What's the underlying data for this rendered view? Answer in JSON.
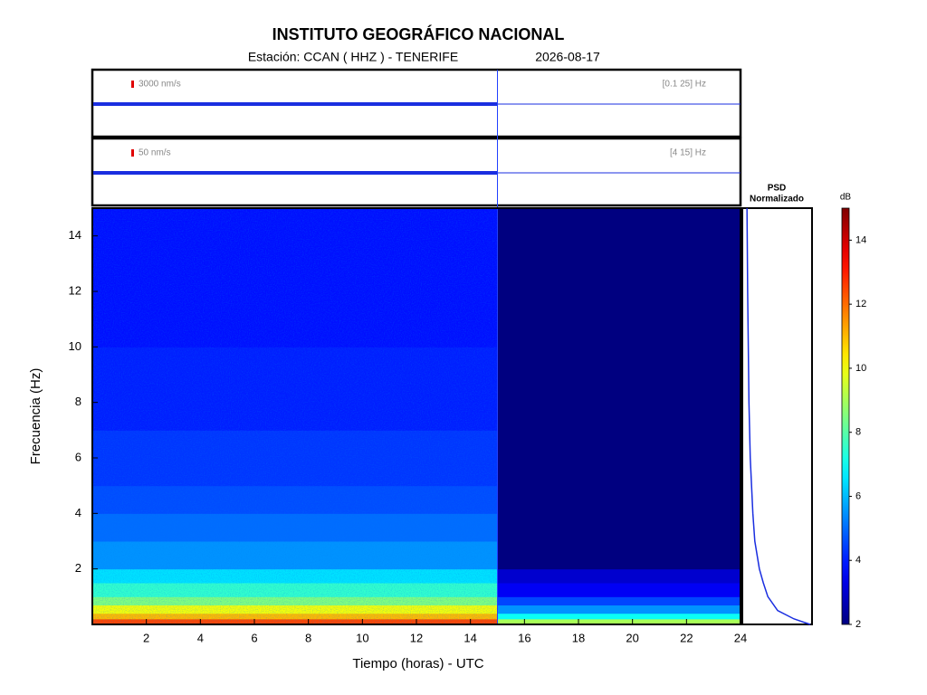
{
  "chart_data": {
    "type": "spectrogram",
    "title": "INSTITUTO GEOGRÁFICO NACIONAL",
    "station": "Estación:  CCAN ( HHZ ) - TENERIFE",
    "date": "2026-08-17",
    "xlabel": "Tiempo (horas) - UTC",
    "ylabel": "Frecuencia  (Hz)",
    "xlim": [
      0,
      24
    ],
    "xticks": [
      2,
      4,
      6,
      8,
      10,
      12,
      14,
      16,
      18,
      20,
      22,
      24
    ],
    "ylim": [
      0,
      15
    ],
    "yticks": [
      2,
      4,
      6,
      8,
      10,
      12,
      14
    ],
    "traces": [
      {
        "scale_label": "3000 nm/s",
        "band_label": "[0.1 25] Hz"
      },
      {
        "scale_label": "50 nm/s",
        "band_label": "[4 15] Hz"
      }
    ],
    "data_end": 15,
    "spectrogram": {
      "freq_edges": [
        0,
        0.2,
        0.4,
        0.7,
        1,
        1.5,
        2,
        3,
        4,
        5,
        7,
        10,
        15
      ],
      "db": [
        12.5,
        11,
        10,
        8.5,
        7.5,
        6.5,
        5.5,
        5,
        4.6,
        4.3,
        4,
        3.8
      ],
      "empty_db": [
        9,
        7,
        5.5,
        4.5,
        3.5,
        3,
        2,
        2,
        2,
        2,
        2,
        2
      ]
    },
    "psd": {
      "title": [
        "PSD",
        "Normalizado"
      ],
      "freqs": [
        0,
        0.2,
        0.5,
        1,
        1.5,
        2,
        3,
        4,
        5,
        6,
        8,
        10,
        12,
        15
      ],
      "values": [
        1,
        0.75,
        0.5,
        0.35,
        0.28,
        0.22,
        0.15,
        0.12,
        0.1,
        0.08,
        0.06,
        0.05,
        0.04,
        0.03
      ]
    },
    "colorbar": {
      "label": "dB",
      "clim": [
        2,
        15
      ],
      "ticks": [
        2,
        4,
        6,
        8,
        10,
        12,
        14
      ]
    }
  }
}
